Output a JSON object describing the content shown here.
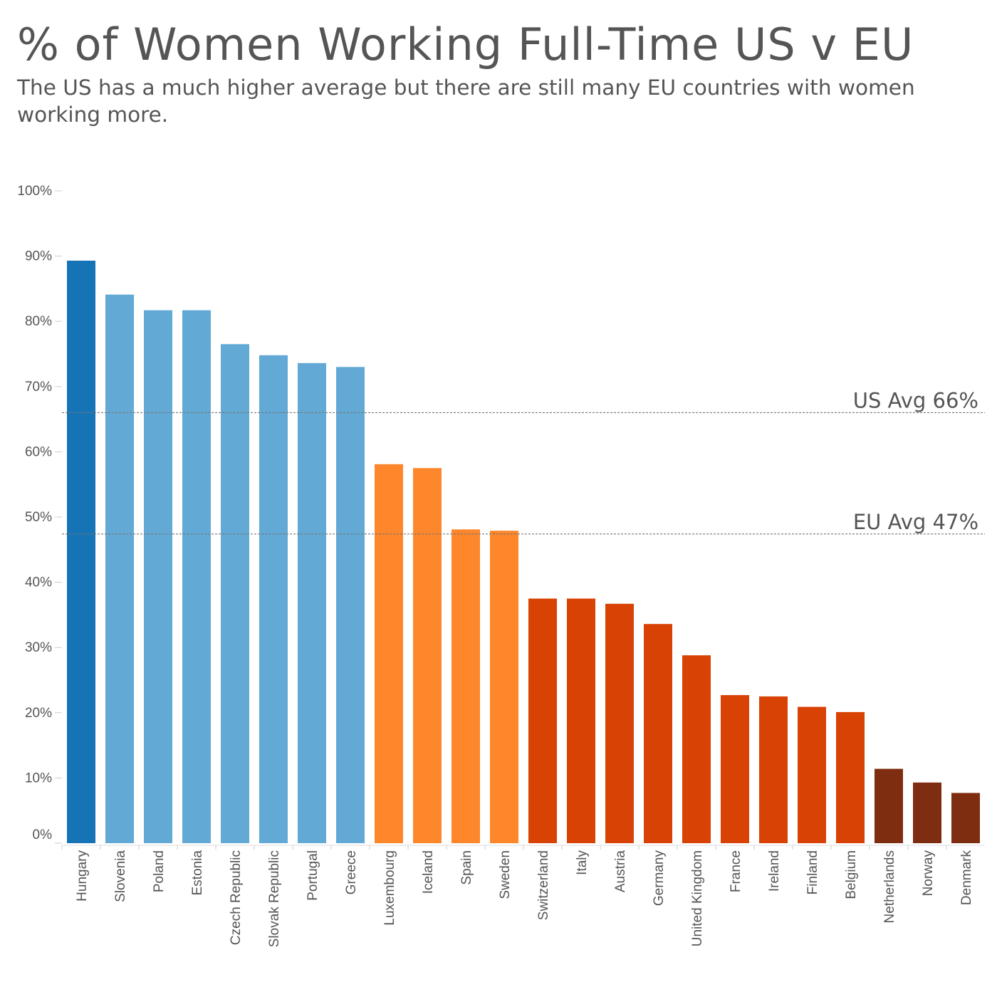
{
  "title": "% of Women Working Full-Time US v EU",
  "subtitle": "The US has a much higher average but there are still many EU countries with women working more.",
  "chart_data": {
    "type": "bar",
    "categories": [
      "Hungary",
      "Slovenia",
      "Poland",
      "Estonia",
      "Czech Republic",
      "Slovak Republic",
      "Portugal",
      "Greece",
      "Luxembourg",
      "Iceland",
      "Spain",
      "Sweden",
      "Switzerland",
      "Italy",
      "Austria",
      "Germany",
      "United Kingdom",
      "France",
      "Ireland",
      "Finland",
      "Belgium",
      "Netherlands",
      "Norway",
      "Denmark"
    ],
    "values": [
      89.3,
      84.1,
      81.7,
      81.7,
      76.5,
      74.8,
      73.6,
      73.0,
      58.1,
      57.5,
      48.1,
      47.9,
      37.5,
      37.5,
      36.7,
      33.6,
      28.8,
      22.7,
      22.5,
      20.9,
      20.1,
      11.4,
      9.3,
      7.7
    ],
    "colors": [
      "#1673b6",
      "#62a9d5",
      "#62a9d5",
      "#62a9d5",
      "#62a9d5",
      "#62a9d5",
      "#62a9d5",
      "#62a9d5",
      "#fd872a",
      "#fd872a",
      "#fd872a",
      "#fd872a",
      "#d84204",
      "#d84204",
      "#d84204",
      "#d84204",
      "#d84204",
      "#d84204",
      "#d84204",
      "#d84204",
      "#d84204",
      "#7f2d10",
      "#7f2d10",
      "#7f2d10"
    ],
    "ylim": [
      0,
      100
    ],
    "yticks": [
      0,
      10,
      20,
      30,
      40,
      50,
      60,
      70,
      80,
      90,
      100
    ],
    "ytick_labels": [
      "0%",
      "10%",
      "20%",
      "30%",
      "40%",
      "50%",
      "60%",
      "70%",
      "80%",
      "90%",
      "100%"
    ],
    "reference_lines": [
      {
        "label": "US Avg 66%",
        "value": 66
      },
      {
        "label": "EU Avg 47%",
        "value": 47.4
      }
    ],
    "grid": false,
    "legend": "none"
  }
}
